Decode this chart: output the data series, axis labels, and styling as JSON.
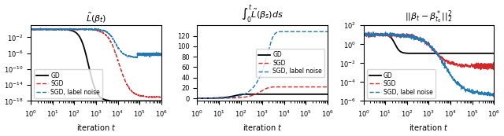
{
  "fig_width": 6.4,
  "fig_height": 1.73,
  "dpi": 100,
  "panel1": {
    "title": "$\\tilde{L}(\\beta_t)$",
    "xlabel": "iteration $t$",
    "xlim": [
      1,
      1000000.0
    ],
    "ylim": [
      1e-18,
      10
    ],
    "gd_color": "#000000",
    "sgd_color": "#d62728",
    "sgd_ln_color": "#1f77b4",
    "legend_labels": [
      "GD",
      "SGD",
      "SGD, label noise"
    ]
  },
  "panel2": {
    "title": "$\\int_0^t\\tilde{L}(\\beta_s)ds$",
    "xlabel": "iteration $t$",
    "xlim": [
      1,
      1000000.0
    ],
    "ylim": [
      -5,
      140
    ],
    "yticks": [
      0,
      20,
      40,
      60,
      80,
      100,
      120
    ],
    "gd_color": "#000000",
    "sgd_color": "#d62728",
    "sgd_ln_color": "#1f77b4",
    "gd_final": 8.0,
    "sgd_final": 22.0,
    "sgdln_final": 128.0
  },
  "panel3": {
    "title": "$||\\beta_t - \\beta^*_{t_0}||_2^2$",
    "xlabel": "iteration $t$",
    "xlim": [
      1,
      1000000.0
    ],
    "ylim": [
      1e-06,
      100.0
    ],
    "gd_color": "#000000",
    "sgd_color": "#d62728",
    "sgd_ln_color": "#1f77b4",
    "legend_labels": [
      "GD",
      "SGD",
      "SGD, label noise"
    ]
  }
}
